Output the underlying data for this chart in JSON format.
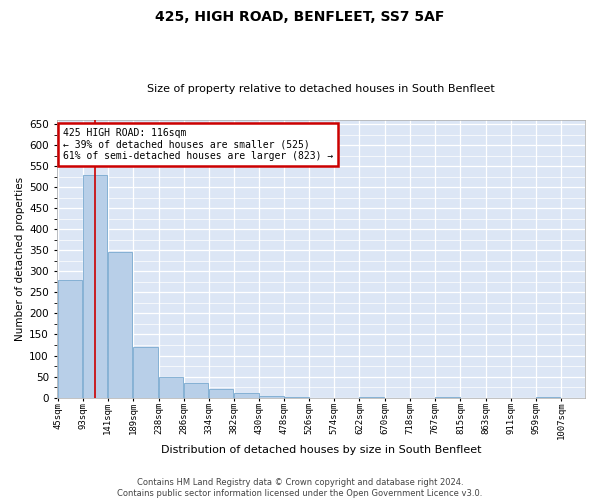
{
  "title": "425, HIGH ROAD, BENFLEET, SS7 5AF",
  "subtitle": "Size of property relative to detached houses in South Benfleet",
  "xlabel": "Distribution of detached houses by size in South Benfleet",
  "ylabel": "Number of detached properties",
  "footer_line1": "Contains HM Land Registry data © Crown copyright and database right 2024.",
  "footer_line2": "Contains public sector information licensed under the Open Government Licence v3.0.",
  "annotation_title": "425 HIGH ROAD: 116sqm",
  "annotation_line1": "← 39% of detached houses are smaller (525)",
  "annotation_line2": "61% of semi-detached houses are larger (823) →",
  "property_size": 116,
  "bar_color": "#b8cfe8",
  "bar_edge_color": "#7aaad0",
  "redline_color": "#cc0000",
  "annotation_box_color": "#ffffff",
  "annotation_box_edge": "#cc0000",
  "axes_bg_color": "#dce6f5",
  "bins": [
    45,
    93,
    141,
    189,
    238,
    286,
    334,
    382,
    430,
    478,
    526,
    574,
    622,
    670,
    718,
    767,
    815,
    863,
    911,
    959,
    1007
  ],
  "counts": [
    280,
    530,
    345,
    120,
    50,
    35,
    20,
    10,
    5,
    2,
    0,
    0,
    2,
    0,
    0,
    2,
    0,
    0,
    0,
    2
  ],
  "ylim": [
    0,
    660
  ],
  "yticks": [
    0,
    50,
    100,
    150,
    200,
    250,
    300,
    350,
    400,
    450,
    500,
    550,
    600,
    650
  ]
}
